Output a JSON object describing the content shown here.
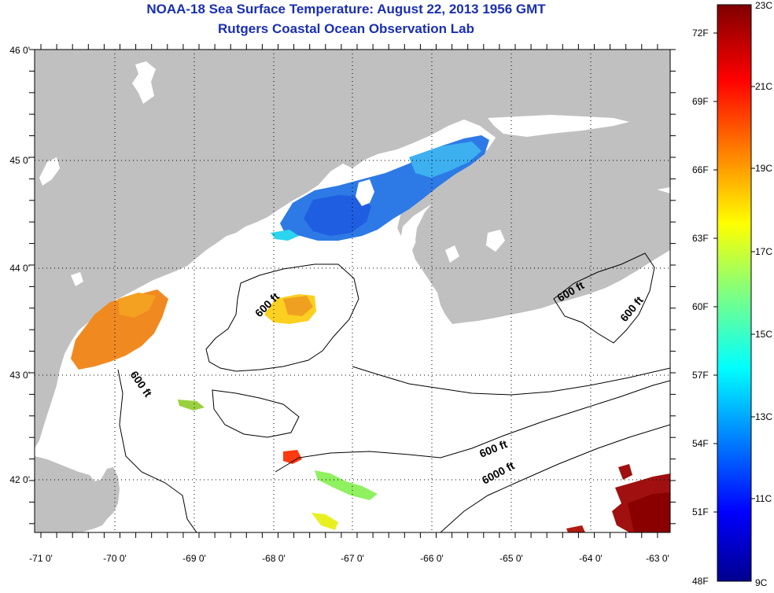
{
  "header": {
    "title": "NOAA-18 Sea Surface Temperature:  August 22, 2013 1956 GMT",
    "subtitle": "Rutgers Coastal Ocean Observation Lab"
  },
  "axes": {
    "lon_ticks": [
      "-71 0'",
      "-70 0'",
      "-69 0'",
      "-68 0'",
      "-67 0'",
      "-66 0'",
      "-65 0'",
      "-64 0'",
      "-63 0'"
    ],
    "lat_ticks": [
      "46 0'",
      "45 0'",
      "44 0'",
      "43 0'",
      "42 0'"
    ]
  },
  "contours": [
    {
      "label": "600 ft"
    },
    {
      "label": "600 ft"
    },
    {
      "label": "600 ft"
    },
    {
      "label": "600 ft"
    },
    {
      "label": "600 ft"
    },
    {
      "label": "6000 ft"
    }
  ],
  "colorbar": {
    "fahrenheit": [
      "72F",
      "69F",
      "66F",
      "63F",
      "60F",
      "57F",
      "54F",
      "51F",
      "48F"
    ],
    "celsius": [
      "23C",
      "21C",
      "19C",
      "17C",
      "15C",
      "13C",
      "11C",
      "9C"
    ]
  },
  "colors": {
    "land": "#c0c0c0",
    "ocean": "#ffffff",
    "title": "#1a2fb0"
  }
}
